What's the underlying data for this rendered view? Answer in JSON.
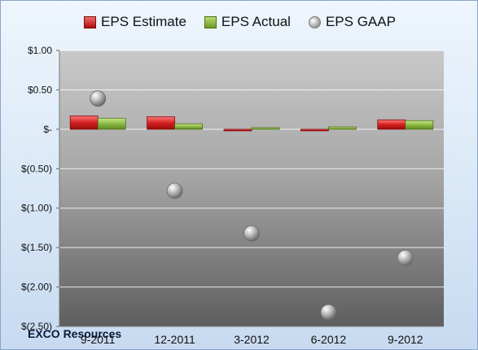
{
  "chart_data": {
    "type": "bar",
    "categories": [
      "9-2011",
      "12-2011",
      "3-2012",
      "6-2012",
      "9-2012"
    ],
    "series": [
      {
        "name": "EPS Estimate",
        "kind": "bar",
        "color": "#c81818",
        "values": [
          0.17,
          0.16,
          -0.02,
          -0.02,
          0.12
        ]
      },
      {
        "name": "EPS Actual",
        "kind": "bar",
        "color": "#8ab640",
        "values": [
          0.14,
          0.07,
          0.02,
          0.03,
          0.11
        ]
      },
      {
        "name": "EPS GAAP",
        "kind": "scatter",
        "color": "#a8a8a8",
        "values": [
          0.39,
          -0.78,
          -1.32,
          -2.32,
          -1.63
        ]
      }
    ],
    "yticks": [
      1.0,
      0.5,
      0.0,
      -0.5,
      -1.0,
      -1.5,
      -2.0,
      -2.5
    ],
    "ytick_labels": [
      "$1.00",
      "$0.50",
      "$-",
      "$(0.50)",
      "$(1.00)",
      "$(1.50)",
      "$(2.00)",
      "$(2.50)"
    ],
    "ylim": [
      -2.5,
      1.0
    ],
    "grid": true,
    "legend_position": "top-center",
    "title": "",
    "xlabel": "",
    "ylabel": ""
  },
  "footer": {
    "company": "EXCO Resources"
  }
}
